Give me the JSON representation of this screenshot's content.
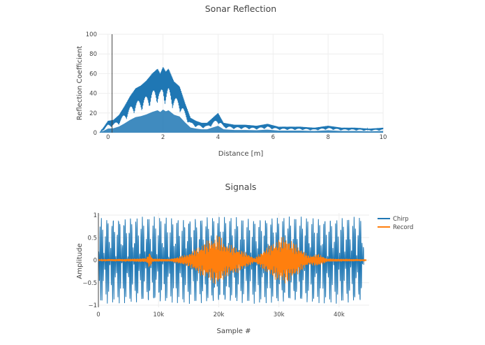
{
  "chart_data": [
    {
      "type": "area",
      "title": "Sonar Reflection",
      "xlabel": "Distance [m]",
      "ylabel": "Reflection Coefficient",
      "xlim": [
        -0.35,
        10
      ],
      "ylim": [
        0,
        100
      ],
      "xticks": [
        0,
        2,
        4,
        6,
        8,
        10
      ],
      "yticks": [
        0,
        20,
        40,
        60,
        80,
        100
      ],
      "grid": true,
      "series": [
        {
          "color": "#1f77b4",
          "x": [
            -0.3,
            0.0,
            0.2,
            0.4,
            0.6,
            0.8,
            1.0,
            1.2,
            1.4,
            1.6,
            1.8,
            1.9,
            2.0,
            2.1,
            2.2,
            2.4,
            2.6,
            2.8,
            3.0,
            3.2,
            3.4,
            3.6,
            3.8,
            4.0,
            4.2,
            4.6,
            5.0,
            5.4,
            5.8,
            6.2,
            6.6,
            7.0,
            7.5,
            8.0,
            8.5,
            9.0,
            9.5,
            10.0
          ],
          "values": [
            0,
            12,
            13,
            18,
            27,
            37,
            45,
            48,
            53,
            60,
            65,
            60,
            67,
            62,
            65,
            52,
            47,
            30,
            15,
            12,
            10,
            10,
            15,
            20,
            10,
            8,
            8,
            7,
            9,
            6,
            6,
            6,
            5,
            7,
            5,
            5,
            4,
            5
          ]
        }
      ]
    },
    {
      "type": "line",
      "title": "Signals",
      "xlabel": "Sample #",
      "ylabel": "Amplitude",
      "xlim": [
        0,
        45000
      ],
      "ylim": [
        -1,
        1
      ],
      "xticks": [
        0,
        10000,
        20000,
        30000,
        40000
      ],
      "xtick_labels": [
        "0",
        "10k",
        "20k",
        "30k",
        "40k"
      ],
      "yticks": [
        -1,
        -0.5,
        0,
        0.5,
        1
      ],
      "ytick_labels": [
        "−1",
        "−0.5",
        "0",
        "0.5",
        "1"
      ],
      "grid": true,
      "legend_position": "top-right",
      "series": [
        {
          "name": "Chirp",
          "color": "#1f77b4",
          "amplitude": 0.97,
          "x_range": [
            0,
            44100
          ]
        },
        {
          "name": "Record",
          "color": "#ff7f0e",
          "x": [
            0,
            5000,
            8000,
            8500,
            9000,
            12000,
            15000,
            17000,
            20000,
            21000,
            23000,
            26000,
            28000,
            30000,
            31000,
            33000,
            35000,
            36500,
            38000,
            44500
          ],
          "values": [
            0.02,
            0.03,
            0.05,
            0.2,
            0.04,
            0.03,
            0.15,
            0.35,
            0.6,
            0.4,
            0.3,
            0.05,
            0.3,
            0.5,
            0.55,
            0.35,
            0.1,
            0.15,
            0.04,
            0.02
          ]
        }
      ]
    }
  ]
}
